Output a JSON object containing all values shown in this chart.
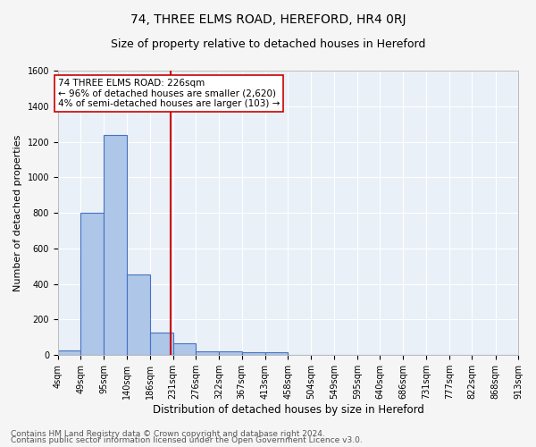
{
  "title": "74, THREE ELMS ROAD, HEREFORD, HR4 0RJ",
  "subtitle": "Size of property relative to detached houses in Hereford",
  "xlabel": "Distribution of detached houses by size in Hereford",
  "ylabel": "Number of detached properties",
  "footnote1": "Contains HM Land Registry data © Crown copyright and database right 2024.",
  "footnote2": "Contains public sector information licensed under the Open Government Licence v3.0.",
  "annotation_line1": "74 THREE ELMS ROAD: 226sqm",
  "annotation_line2": "← 96% of detached houses are smaller (2,620)",
  "annotation_line3": "4% of semi-detached houses are larger (103) →",
  "property_sqm": 226,
  "bar_edges": [
    4,
    49,
    95,
    140,
    186,
    231,
    276,
    322,
    367,
    413,
    458,
    504,
    549,
    595,
    640,
    686,
    731,
    777,
    822,
    868,
    913
  ],
  "bar_heights": [
    25,
    800,
    1240,
    455,
    125,
    65,
    20,
    20,
    15,
    15,
    0,
    0,
    0,
    0,
    0,
    0,
    0,
    0,
    0,
    0
  ],
  "bar_color": "#aec6e8",
  "bar_edge_color": "#4472c4",
  "vline_color": "#cc0000",
  "vline_x": 226,
  "annotation_box_edge": "#cc0000",
  "annotation_box_face": "#ffffff",
  "ylim": [
    0,
    1600
  ],
  "yticks": [
    0,
    200,
    400,
    600,
    800,
    1000,
    1200,
    1400,
    1600
  ],
  "bg_color": "#eaf0f8",
  "grid_color": "#ffffff",
  "title_fontsize": 10,
  "subtitle_fontsize": 9,
  "xlabel_fontsize": 8.5,
  "ylabel_fontsize": 8,
  "tick_fontsize": 7,
  "annotation_fontsize": 7.5,
  "footnote_fontsize": 6.5
}
